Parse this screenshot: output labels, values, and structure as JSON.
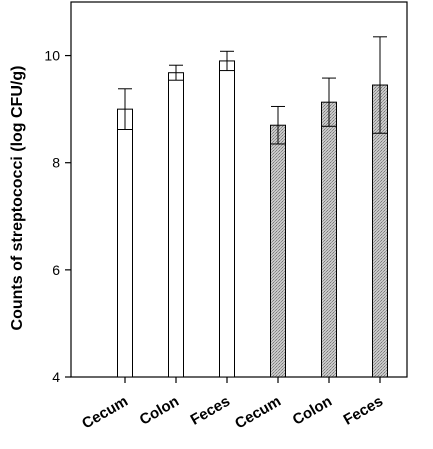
{
  "chart_data": {
    "type": "bar",
    "title": "",
    "xlabel": "",
    "ylabel": "Counts of streptococci (log CFU/g)",
    "ylim": [
      4,
      11
    ],
    "yticks": [
      4,
      6,
      8,
      10
    ],
    "grid": false,
    "categories": [
      "Cecum",
      "Colon",
      "Feces",
      "Cecum",
      "Colon",
      "Feces"
    ],
    "values": [
      9.0,
      9.68,
      9.9,
      8.7,
      9.13,
      9.45
    ],
    "errors": [
      0.38,
      0.14,
      0.18,
      0.35,
      0.45,
      0.9
    ],
    "bar_colors": [
      "#ffffff",
      "#ffffff",
      "#ffffff",
      "#b3b3b3",
      "#b3b3b3",
      "#b3b3b3"
    ]
  }
}
